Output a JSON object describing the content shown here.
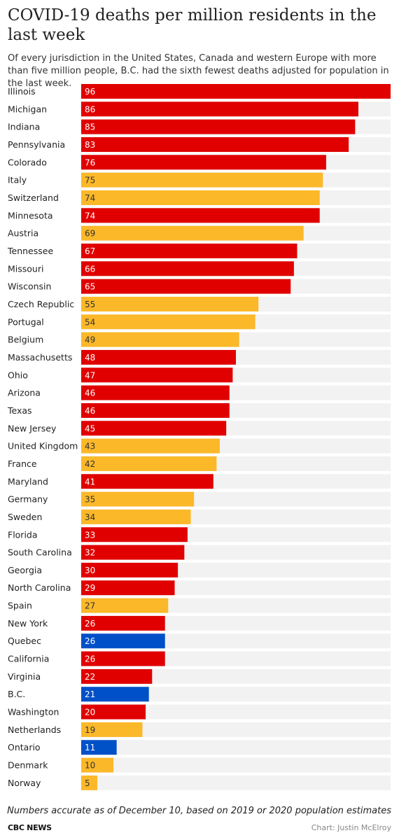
{
  "header": {
    "title": "COVID-19 deaths per million residents in the last week",
    "subtitle": "Of every jurisdiction in the United States, Canada and western Europe with more than five million people, B.C. had the sixth fewest deaths adjusted for population in the last week."
  },
  "footer": {
    "footnote": "Numbers accurate as of December 10, based on 2019 or 2020 population estimates",
    "brand": "CBC NEWS",
    "credit": "Chart: Justin McElroy"
  },
  "colors": {
    "us_state": "#e00000",
    "europe": "#fbb829",
    "canada": "#0050c8",
    "track": "#f2f2f2",
    "label_on_dark": "#ffffff",
    "label_on_light": "#333333"
  },
  "chart_data": {
    "type": "bar",
    "orientation": "horizontal",
    "xlim": [
      0,
      96
    ],
    "grid": false,
    "categories": [
      "Illinois",
      "Michigan",
      "Indiana",
      "Pennsylvania",
      "Colorado",
      "Italy",
      "Switzerland",
      "Minnesota",
      "Austria",
      "Tennessee",
      "Missouri",
      "Wisconsin",
      "Czech Republic",
      "Portugal",
      "Belgium",
      "Massachusetts",
      "Ohio",
      "Arizona",
      "Texas",
      "New Jersey",
      "United Kingdom",
      "France",
      "Maryland",
      "Germany",
      "Sweden",
      "Florida",
      "South Carolina",
      "Georgia",
      "North Carolina",
      "Spain",
      "New York",
      "Quebec",
      "California",
      "Virginia",
      "B.C.",
      "Washington",
      "Netherlands",
      "Ontario",
      "Denmark",
      "Norway"
    ],
    "values": [
      96,
      86,
      85,
      83,
      76,
      75,
      74,
      74,
      69,
      67,
      66,
      65,
      55,
      54,
      49,
      48,
      47,
      46,
      46,
      45,
      43,
      42,
      41,
      35,
      34,
      33,
      32,
      30,
      29,
      27,
      26,
      26,
      26,
      22,
      21,
      20,
      19,
      11,
      10,
      5
    ],
    "groups": [
      "us_state",
      "us_state",
      "us_state",
      "us_state",
      "us_state",
      "europe",
      "europe",
      "us_state",
      "europe",
      "us_state",
      "us_state",
      "us_state",
      "europe",
      "europe",
      "europe",
      "us_state",
      "us_state",
      "us_state",
      "us_state",
      "us_state",
      "europe",
      "europe",
      "us_state",
      "europe",
      "europe",
      "us_state",
      "us_state",
      "us_state",
      "us_state",
      "europe",
      "us_state",
      "canada",
      "us_state",
      "us_state",
      "canada",
      "us_state",
      "europe",
      "canada",
      "europe",
      "europe"
    ]
  }
}
